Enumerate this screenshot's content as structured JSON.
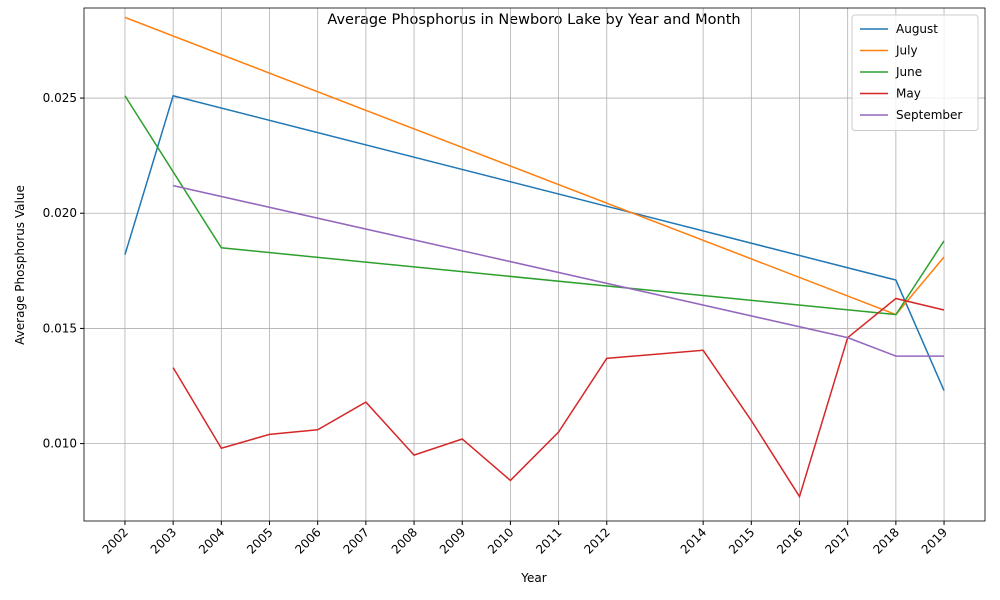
{
  "chart_data": {
    "type": "line",
    "title": "Average Phosphorus in Newboro Lake by Year and Month",
    "x_label": "Year",
    "y_label": "Average Phosphorus Value",
    "series": [
      {
        "name": "August",
        "color": "#1f77b4",
        "x": [
          2002,
          2003,
          2018,
          2019
        ],
        "values": [
          0.0182,
          0.0251,
          0.0171,
          0.0123
        ]
      },
      {
        "name": "July",
        "color": "#ff7f0e",
        "x": [
          2002,
          2018,
          2019
        ],
        "values": [
          0.0285,
          0.0156,
          0.0181
        ]
      },
      {
        "name": "June",
        "color": "#2ca02c",
        "x": [
          2002,
          2004,
          2018,
          2019
        ],
        "values": [
          0.0251,
          0.0185,
          0.0156,
          0.0188
        ]
      },
      {
        "name": "May",
        "color": "#d62728",
        "x": [
          2003,
          2004,
          2005,
          2006,
          2007,
          2008,
          2009,
          2010,
          2011,
          2012,
          2014,
          2015,
          2016,
          2017,
          2018,
          2019
        ],
        "values": [
          0.0133,
          0.0098,
          0.0104,
          0.0106,
          0.0118,
          0.0095,
          0.0102,
          0.0084,
          0.0105,
          0.0137,
          0.01405,
          0.011,
          0.0077,
          0.0146,
          0.0163,
          0.0158
        ]
      },
      {
        "name": "September",
        "color": "#9467bd",
        "x": [
          2003,
          2017,
          2018,
          2019
        ],
        "values": [
          0.0212,
          0.0146,
          0.0138,
          0.0138
        ]
      }
    ],
    "xlim": [
      2001.15,
      2019.85
    ],
    "xticks": [
      2002,
      2003,
      2004,
      2005,
      2006,
      2007,
      2008,
      2009,
      2010,
      2011,
      2012,
      2014,
      2015,
      2016,
      2017,
      2018,
      2019
    ],
    "ylim": [
      0.00664,
      0.02891
    ],
    "yticks": [
      {
        "value": 0.01,
        "label": "0.010"
      },
      {
        "value": 0.015,
        "label": "0.015"
      },
      {
        "value": 0.02,
        "label": "0.020"
      },
      {
        "value": 0.025,
        "label": "0.025"
      }
    ],
    "grid": true,
    "legend": "upper right"
  }
}
